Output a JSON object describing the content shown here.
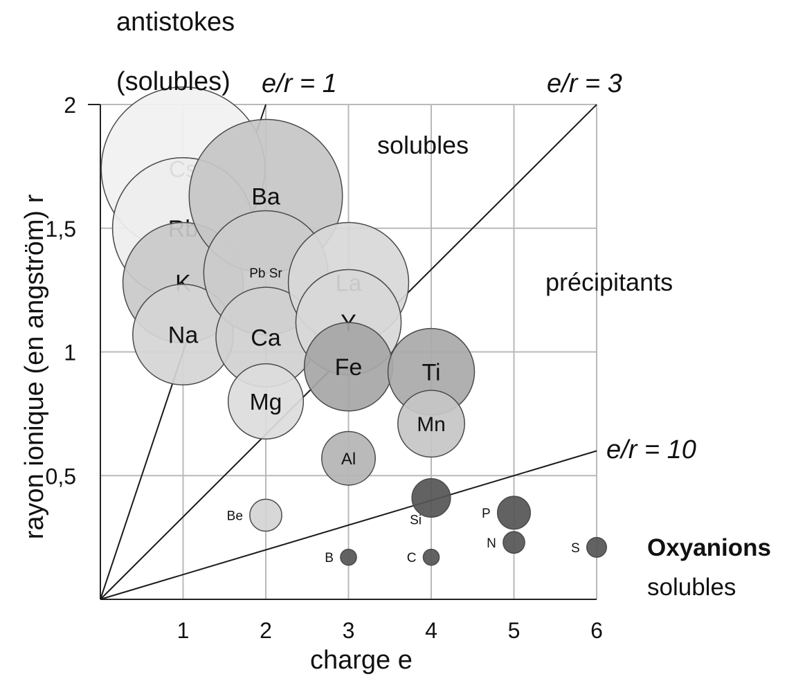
{
  "chart_data": {
    "type": "scatter",
    "xlabel": "charge  e",
    "ylabel": "rayon ionique (en angström)  r",
    "xlim": [
      0,
      6
    ],
    "ylim": [
      0,
      2
    ],
    "xticks": [
      "1",
      "2",
      "3",
      "4",
      "5",
      "6"
    ],
    "yticks": [
      {
        "value": 0.5,
        "label": "0,5"
      },
      {
        "value": 1,
        "label": "1"
      },
      {
        "value": 1.5,
        "label": "1,5"
      },
      {
        "value": 2,
        "label": "2"
      }
    ],
    "grid": true,
    "lines": [
      {
        "label": "e/r = 1",
        "slope": 1
      },
      {
        "label": "e/r = 3",
        "slope": 0.3333
      },
      {
        "label": "e/r = 10",
        "slope": 0.1
      }
    ],
    "regions": [
      {
        "id": "antistokes",
        "lines": [
          "antistokes",
          "(solubles)"
        ]
      },
      {
        "id": "solubles",
        "lines": [
          "solubles"
        ]
      },
      {
        "id": "precipitants",
        "lines": [
          "précipitants"
        ]
      },
      {
        "id": "oxyanions",
        "lines": [
          "Oxyanions",
          "solubles"
        ]
      }
    ],
    "points": [
      {
        "label": "Cs",
        "x": 1,
        "y": 1.74,
        "r": 1.74,
        "fill": "#f1f1f1",
        "label_pos": "inside"
      },
      {
        "label": "Rb",
        "x": 1,
        "y": 1.5,
        "r": 1.5,
        "fill": "#eeeeee",
        "label_pos": "inside"
      },
      {
        "label": "K",
        "x": 1,
        "y": 1.28,
        "r": 1.28,
        "fill": "#c9c9c9",
        "label_pos": "inside"
      },
      {
        "label": "Na",
        "x": 1,
        "y": 1.07,
        "r": 1.07,
        "fill": "#d5d5d5",
        "label_pos": "inside"
      },
      {
        "label": "Ba",
        "x": 2,
        "y": 1.63,
        "r": 1.63,
        "fill": "#c6c6c6",
        "label_pos": "inside"
      },
      {
        "label": "Pb Sr",
        "x": 2,
        "y": 1.32,
        "r": 1.32,
        "fill": "#cbcbcb",
        "label_pos": "inside"
      },
      {
        "label": "Ca",
        "x": 2,
        "y": 1.06,
        "r": 1.06,
        "fill": "#d0d0d0",
        "label_pos": "inside"
      },
      {
        "label": "Mg",
        "x": 2,
        "y": 0.8,
        "r": 0.8,
        "fill": "#dcdcdc",
        "label_pos": "inside"
      },
      {
        "label": "La",
        "x": 3,
        "y": 1.28,
        "r": 1.28,
        "fill": "#d8d8d8",
        "label_pos": "inside"
      },
      {
        "label": "Y",
        "x": 3,
        "y": 1.12,
        "r": 1.12,
        "fill": "#d8d8d8",
        "label_pos": "inside"
      },
      {
        "label": "Fe",
        "x": 3,
        "y": 0.94,
        "r": 0.94,
        "fill": "#a6a6a6",
        "label_pos": "inside"
      },
      {
        "label": "Al",
        "x": 3,
        "y": 0.57,
        "r": 0.57,
        "fill": "#b4b4b4",
        "label_pos": "inside"
      },
      {
        "label": "Ti",
        "x": 4,
        "y": 0.92,
        "r": 0.92,
        "fill": "#a9a9a9",
        "label_pos": "inside"
      },
      {
        "label": "Mn",
        "x": 4,
        "y": 0.71,
        "r": 0.71,
        "fill": "#c6c6c6",
        "label_pos": "inside"
      },
      {
        "label": "Be",
        "x": 2,
        "y": 0.34,
        "r": 0.34,
        "fill": "#d4d4d4",
        "label_pos": "left"
      },
      {
        "label": "Si",
        "x": 4,
        "y": 0.41,
        "r": 0.41,
        "fill": "#555555",
        "label_pos": "below-left"
      },
      {
        "label": "B",
        "x": 3,
        "y": 0.17,
        "r": 0.17,
        "fill": "#555555",
        "label_pos": "left"
      },
      {
        "label": "C",
        "x": 4,
        "y": 0.17,
        "r": 0.17,
        "fill": "#555555",
        "label_pos": "left"
      },
      {
        "label": "P",
        "x": 5,
        "y": 0.35,
        "r": 0.35,
        "fill": "#555555",
        "label_pos": "left"
      },
      {
        "label": "N",
        "x": 5,
        "y": 0.23,
        "r": 0.23,
        "fill": "#555555",
        "label_pos": "left"
      },
      {
        "label": "S",
        "x": 6,
        "y": 0.21,
        "r": 0.21,
        "fill": "#555555",
        "label_pos": "left"
      }
    ]
  }
}
